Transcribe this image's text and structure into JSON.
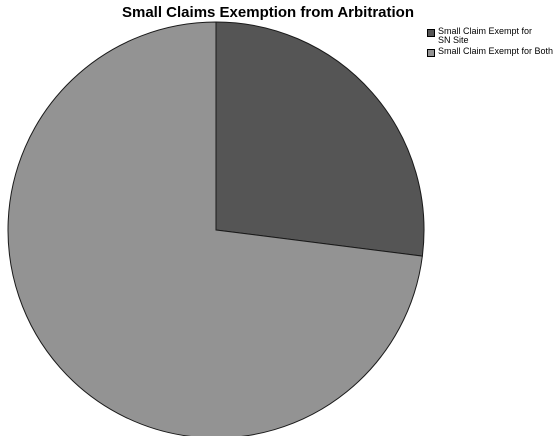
{
  "chart_data": {
    "type": "pie",
    "title": "Small Claims Exemption from Arbitration",
    "series": [
      {
        "name": "Small Claim Exempt for SN Site",
        "value": 27.0,
        "color": "#555555"
      },
      {
        "name": "Small Claim Exempt for Both",
        "value": 73.0,
        "color": "#939393"
      }
    ],
    "start_angle_deg": 0,
    "direction": "clockwise",
    "legend_position": "top-right"
  }
}
